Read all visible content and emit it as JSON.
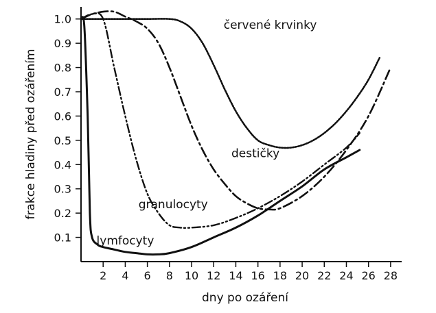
{
  "chart_data": {
    "type": "line",
    "xlabel": "dny po ozáření",
    "ylabel": "frakce hladiny před ozářením",
    "xlim": [
      0,
      29
    ],
    "ylim": [
      0,
      1.05
    ],
    "xticks": [
      "2",
      "4",
      "6",
      "8",
      "10",
      "12",
      "14",
      "16",
      "18",
      "20",
      "22",
      "24",
      "26",
      "28"
    ],
    "yticks": [
      "0.1",
      "0.2",
      "0.3",
      "0.4",
      "0.5",
      "0.6",
      "0.7",
      "0.8",
      "0.9",
      "1.0"
    ],
    "grid": false,
    "series": [
      {
        "name": "lymfocyty",
        "line_style": "solid",
        "x": [
          0,
          0.3,
          0.6,
          0.8,
          1.0,
          1.5,
          2,
          3,
          4,
          5,
          6,
          7,
          8,
          10,
          12,
          14,
          16,
          18,
          20,
          22,
          24,
          25.2
        ],
        "y": [
          1.0,
          0.97,
          0.6,
          0.2,
          0.1,
          0.07,
          0.06,
          0.05,
          0.04,
          0.035,
          0.03,
          0.03,
          0.035,
          0.06,
          0.1,
          0.14,
          0.19,
          0.25,
          0.31,
          0.38,
          0.43,
          0.46
        ]
      },
      {
        "name": "granulocyty",
        "line_style": "dash-dot-dot",
        "x": [
          0,
          1,
          2,
          3,
          4,
          5,
          6,
          7,
          8,
          9,
          10,
          12,
          14,
          16,
          18,
          20,
          22,
          24,
          25.2
        ],
        "y": [
          1.0,
          1.02,
          1.0,
          0.8,
          0.6,
          0.42,
          0.28,
          0.2,
          0.15,
          0.14,
          0.14,
          0.15,
          0.18,
          0.22,
          0.27,
          0.33,
          0.4,
          0.47,
          0.53
        ]
      },
      {
        "name": "destičky",
        "line_style": "dash-dot",
        "x": [
          0,
          1,
          2,
          3,
          4,
          5,
          6,
          7,
          8,
          9,
          10,
          11,
          12,
          13,
          14,
          15,
          16,
          17,
          18,
          20,
          22,
          24,
          26,
          28
        ],
        "y": [
          1.0,
          1.02,
          1.03,
          1.03,
          1.01,
          0.99,
          0.96,
          0.9,
          0.8,
          0.68,
          0.56,
          0.46,
          0.38,
          0.32,
          0.27,
          0.24,
          0.22,
          0.215,
          0.22,
          0.27,
          0.35,
          0.46,
          0.6,
          0.8
        ]
      },
      {
        "name": "červené krvinky",
        "line_style": "dotted",
        "x": [
          0,
          2,
          4,
          6,
          8,
          9,
          10,
          11,
          12,
          13,
          14,
          15,
          16,
          17,
          18,
          19,
          20,
          21,
          22,
          23,
          24,
          25,
          26,
          27
        ],
        "y": [
          1.0,
          1.0,
          1.0,
          1.0,
          1.0,
          0.99,
          0.96,
          0.9,
          0.81,
          0.71,
          0.62,
          0.55,
          0.5,
          0.48,
          0.47,
          0.47,
          0.48,
          0.5,
          0.53,
          0.57,
          0.62,
          0.68,
          0.75,
          0.84
        ]
      }
    ],
    "annotations": [
      {
        "text": "červené krvinky",
        "x": 12.9,
        "y": 0.96
      },
      {
        "text": "destičky",
        "x": 13.6,
        "y": 0.43
      },
      {
        "text": "granulocyty",
        "x": 5.2,
        "y": 0.22
      },
      {
        "text": "lymfocyty",
        "x": 1.4,
        "y": 0.07
      }
    ]
  }
}
